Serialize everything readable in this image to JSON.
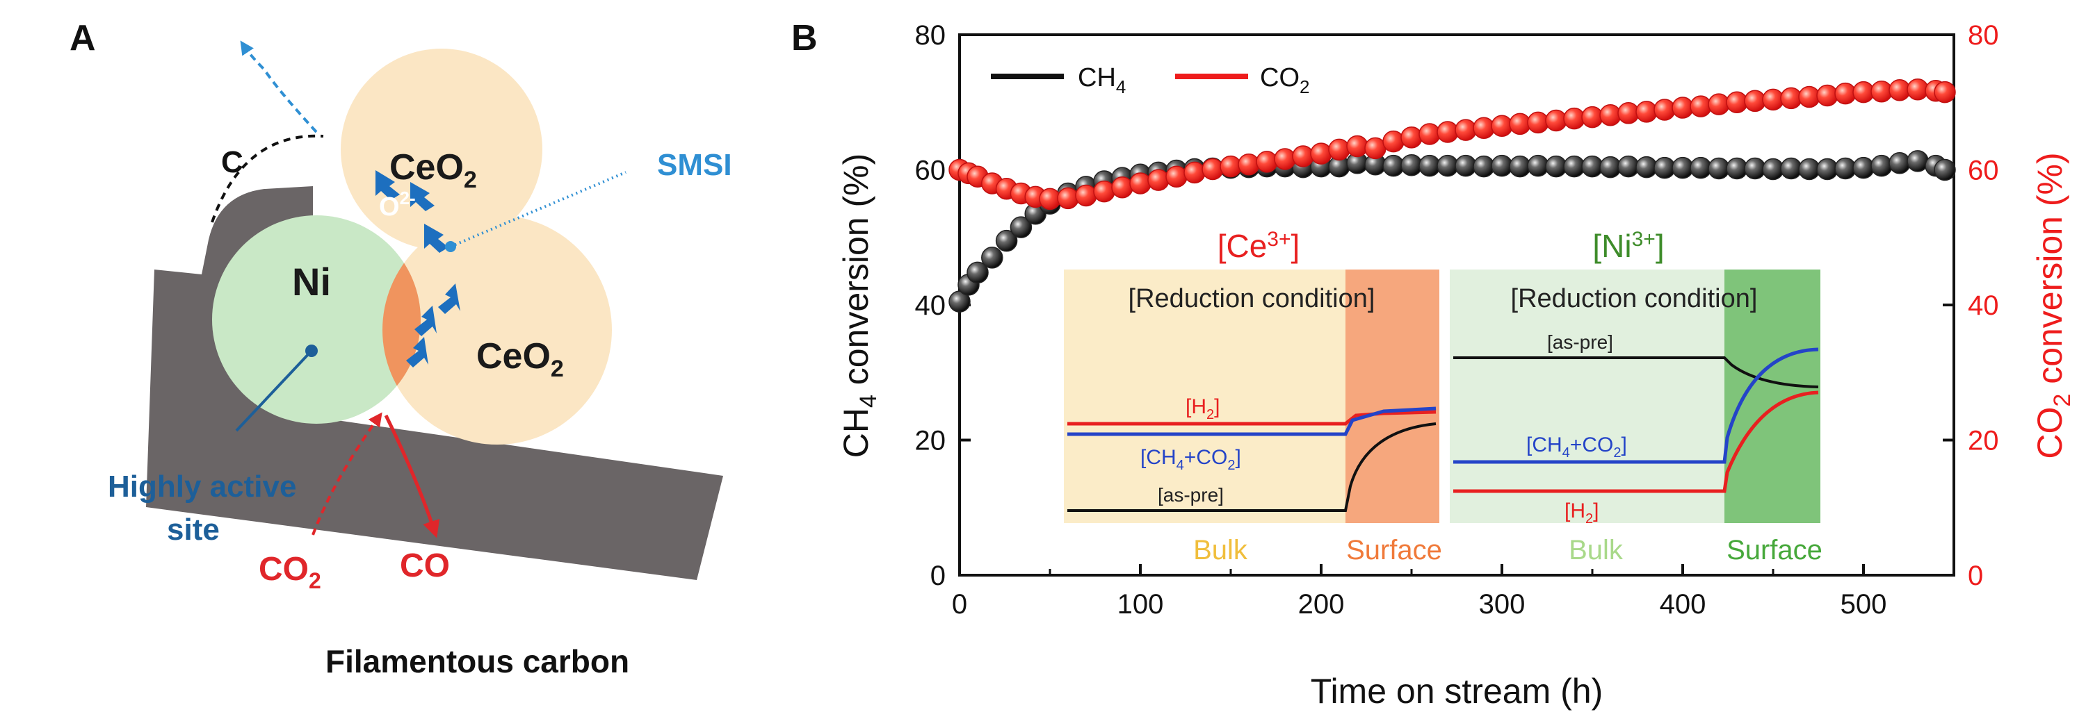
{
  "panel_a": {
    "label": "A",
    "ceo2_top": "CeO",
    "ceo2_right": "CeO",
    "ceo2_sub": "2",
    "ni": "Ni",
    "oxygen": "O",
    "oxygen_sup": "2-",
    "carbon": "C",
    "smsi": "SMSI",
    "active_line1": "Highly active",
    "active_line2": "site",
    "co2": "CO",
    "co2_sub": "2",
    "co": "CO",
    "caption": "Filamentous carbon",
    "colors": {
      "ceo2": "#fbe6c4",
      "ni": "#c9e8c6",
      "interface": "#f0945e",
      "arrow": "#1d6fbf",
      "smsi": "#2f8fd3",
      "substrate": "#6a6566",
      "gas": "#e0262a"
    }
  },
  "panel_b": {
    "label": "B",
    "legend": {
      "ch4": "CH",
      "ch4_sub": "4",
      "co2": "CO",
      "co2_sub": "2"
    },
    "colors": {
      "ch4": "#111111",
      "co2": "#ee1c1c"
    },
    "inset_ce": {
      "title_pre": "[Ce",
      "title_sup": "3+",
      "title_post": "]",
      "title_color": "#e82020",
      "condition": "[Reduction condition]",
      "h2_label_pre": "[H",
      "h2_label_sub": "2",
      "h2_label_post": "]",
      "ch4co2_pre": "[CH",
      "ch4co2_sub1": "4",
      "ch4co2_mid": "+CO",
      "ch4co2_sub2": "2",
      "ch4co2_post": "]",
      "aspre": "[as-pre]",
      "bulk": "Bulk",
      "surface": "Surface",
      "bulk_color": "#f0be3c",
      "surface_color": "#f07a3a",
      "bg_bulk": "#fbecc8",
      "bg_surface": "#f6a77d"
    },
    "inset_ni": {
      "title_pre": "[Ni",
      "title_sup": "3+",
      "title_post": "]",
      "title_color": "#3e8c2a",
      "condition": "[Reduction condition]",
      "aspre": "[as-pre]",
      "ch4co2_pre": "[CH",
      "ch4co2_sub1": "4",
      "ch4co2_mid": "+CO",
      "ch4co2_sub2": "2",
      "ch4co2_post": "]",
      "h2_label_pre": "[H",
      "h2_label_sub": "2",
      "h2_label_post": "]",
      "bulk": "Bulk",
      "surface": "Surface",
      "bulk_color": "#a9d98a",
      "surface_color": "#46a83a",
      "bg_bulk": "#e1f0de",
      "bg_surface": "#7fc47a"
    }
  },
  "chart_data": {
    "type": "scatter",
    "title": "",
    "xlabel": "Time on stream (h)",
    "ylabel_left_pre": "CH",
    "ylabel_left_sub": "4",
    "ylabel_left_post": " conversion (%)",
    "ylabel_right_pre": "CO",
    "ylabel_right_sub": "2",
    "ylabel_right_post": " conversion (%)",
    "xlim": [
      0,
      550
    ],
    "ylim": [
      0,
      80
    ],
    "xticks": [
      0,
      100,
      200,
      300,
      400,
      500
    ],
    "yticks": [
      0,
      20,
      40,
      60,
      80
    ],
    "legend_position": "top-left",
    "series": [
      {
        "name": "CH4",
        "axis": "left",
        "x": [
          0,
          5,
          10,
          18,
          26,
          34,
          42,
          50,
          60,
          70,
          80,
          90,
          100,
          110,
          120,
          130,
          140,
          150,
          160,
          170,
          180,
          190,
          200,
          210,
          220,
          230,
          240,
          250,
          260,
          270,
          280,
          290,
          300,
          310,
          320,
          330,
          340,
          350,
          360,
          370,
          380,
          390,
          400,
          410,
          420,
          430,
          440,
          450,
          460,
          470,
          480,
          490,
          500,
          510,
          520,
          530,
          540,
          545
        ],
        "values": [
          40.5,
          43.0,
          44.8,
          47.0,
          49.5,
          51.5,
          53.5,
          55.0,
          56.5,
          57.5,
          58.3,
          58.8,
          59.3,
          59.6,
          59.9,
          60.1,
          60.2,
          60.3,
          60.4,
          60.5,
          60.5,
          60.4,
          60.5,
          60.5,
          61.0,
          60.8,
          60.6,
          60.7,
          60.6,
          60.6,
          60.6,
          60.5,
          60.6,
          60.5,
          60.6,
          60.5,
          60.5,
          60.5,
          60.4,
          60.5,
          60.4,
          60.3,
          60.3,
          60.3,
          60.2,
          60.2,
          60.2,
          60.1,
          60.2,
          60.1,
          60.1,
          60.2,
          60.3,
          60.6,
          61.0,
          61.3,
          60.6,
          60.0
        ]
      },
      {
        "name": "CO2",
        "axis": "right",
        "x": [
          0,
          5,
          10,
          18,
          26,
          34,
          42,
          50,
          60,
          70,
          80,
          90,
          100,
          110,
          120,
          130,
          140,
          150,
          160,
          170,
          180,
          190,
          200,
          210,
          220,
          230,
          240,
          250,
          260,
          270,
          280,
          290,
          300,
          310,
          320,
          330,
          340,
          350,
          360,
          370,
          380,
          390,
          400,
          410,
          420,
          430,
          440,
          450,
          460,
          470,
          480,
          490,
          500,
          510,
          520,
          530,
          540,
          545
        ],
        "values": [
          60.0,
          59.5,
          59.0,
          58.0,
          57.2,
          56.5,
          56.0,
          55.7,
          55.8,
          56.2,
          56.8,
          57.4,
          58.0,
          58.5,
          59.0,
          59.6,
          60.1,
          60.5,
          60.8,
          61.2,
          61.6,
          62.0,
          62.4,
          63.0,
          63.5,
          63.2,
          64.2,
          64.8,
          65.3,
          65.6,
          65.9,
          66.2,
          66.5,
          66.8,
          67.0,
          67.3,
          67.6,
          67.8,
          68.1,
          68.4,
          68.6,
          68.9,
          69.2,
          69.4,
          69.7,
          70.0,
          70.2,
          70.4,
          70.6,
          70.8,
          71.0,
          71.3,
          71.5,
          71.6,
          71.8,
          71.9,
          71.7,
          71.5
        ]
      }
    ]
  }
}
